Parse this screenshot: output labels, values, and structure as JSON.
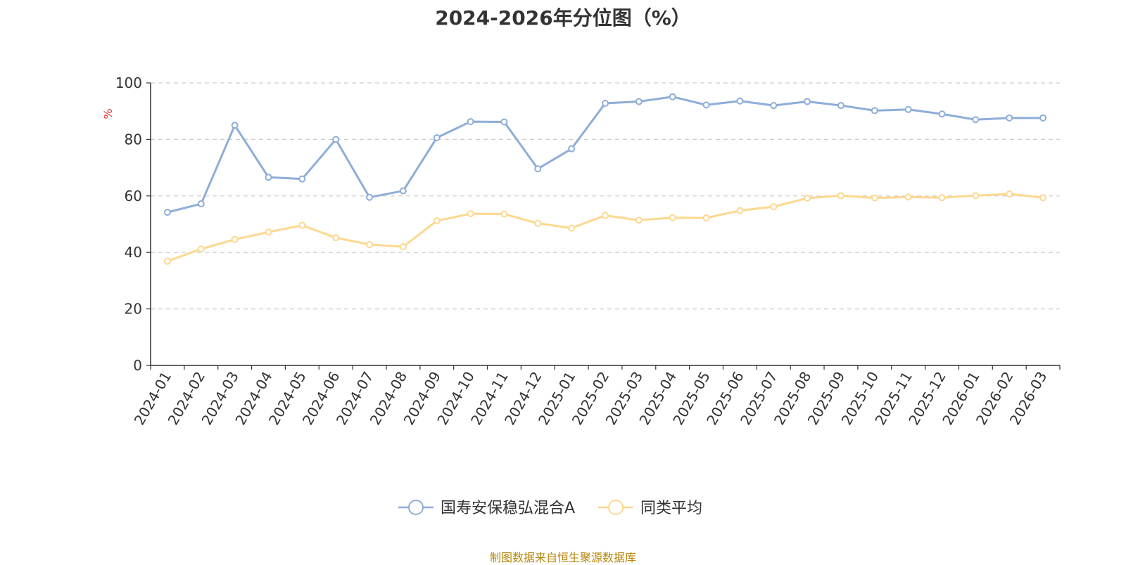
{
  "chart_data": {
    "type": "line",
    "title": "2024-2026年分位图（%）",
    "ylabel": "%",
    "xlabel": "",
    "ylim": [
      0,
      100
    ],
    "yticks": [
      0,
      20,
      40,
      60,
      80,
      100
    ],
    "grid": true,
    "legend_position": "bottom-center",
    "categories": [
      "2024-01",
      "2024-02",
      "2024-03",
      "2024-04",
      "2024-05",
      "2024-06",
      "2024-07",
      "2024-08",
      "2024-09",
      "2024-10",
      "2024-11",
      "2024-12",
      "2025-01",
      "2025-02",
      "2025-03",
      "2025-04",
      "2025-05",
      "2025-06",
      "2025-07",
      "2025-08",
      "2025-09",
      "2025-10",
      "2025-11",
      "2025-12",
      "2026-01",
      "2026-02",
      "2026-03"
    ],
    "series": [
      {
        "name": "国寿安保稳弘混合A",
        "color": "#8eadd9",
        "values": [
          54.2,
          57.2,
          85.0,
          66.6,
          66.0,
          80.0,
          59.5,
          61.8,
          80.6,
          86.3,
          86.2,
          69.6,
          76.7,
          92.8,
          93.4,
          95.1,
          92.2,
          93.6,
          92.0,
          93.4,
          92.0,
          90.2,
          90.6,
          89.0,
          87.0,
          87.6,
          87.6
        ]
      },
      {
        "name": "同类平均",
        "color": "#fcd88f",
        "values": [
          36.9,
          41.2,
          44.6,
          47.2,
          49.6,
          45.2,
          42.8,
          42.0,
          51.2,
          53.7,
          53.6,
          50.3,
          48.6,
          53.1,
          51.4,
          52.3,
          52.2,
          54.8,
          56.2,
          59.2,
          60.1,
          59.3,
          59.6,
          59.4,
          60.1,
          60.7,
          59.4
        ]
      }
    ]
  },
  "source_text": "制图数据来自恒生聚源数据库"
}
